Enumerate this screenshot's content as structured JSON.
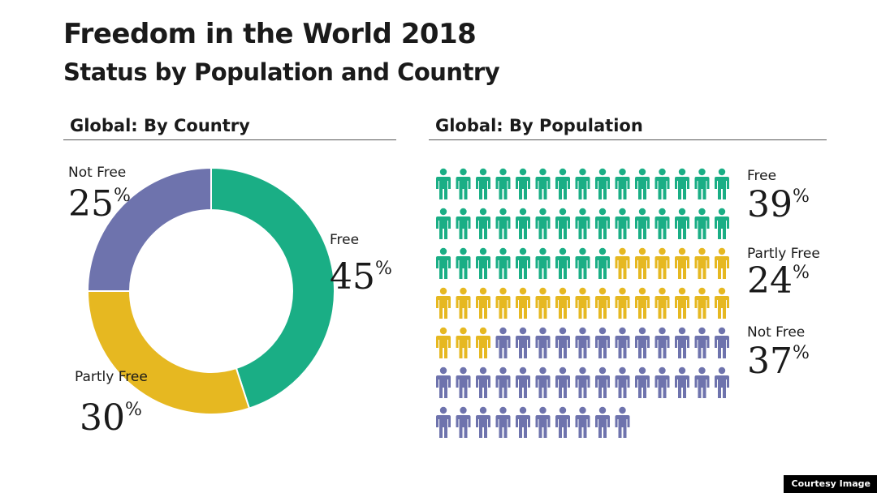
{
  "header": {
    "title": "Freedom in the World 2018",
    "subtitle": "Status by Population and Country"
  },
  "colors": {
    "free": "#1aae85",
    "partly_free": "#e6b821",
    "not_free": "#6e73ad"
  },
  "chart_data": [
    {
      "type": "pie",
      "title": "Global: By Country",
      "donut": true,
      "slices": [
        {
          "name": "Free",
          "value": 45,
          "pct_label": "45"
        },
        {
          "name": "Partly Free",
          "value": 30,
          "pct_label": "30"
        },
        {
          "name": "Not Free",
          "value": 25,
          "pct_label": "25"
        }
      ]
    },
    {
      "type": "pictograph",
      "title": "Global: By Population",
      "icons_per_row": 15,
      "segments": [
        {
          "name": "Free",
          "value": 39,
          "pct_label": "39",
          "icons": 39
        },
        {
          "name": "Partly Free",
          "value": 24,
          "pct_label": "24",
          "icons": 24
        },
        {
          "name": "Not Free",
          "value": 37,
          "pct_label": "37",
          "icons": 37
        }
      ]
    }
  ],
  "percent_sign": "%",
  "credit": "Courtesy Image"
}
